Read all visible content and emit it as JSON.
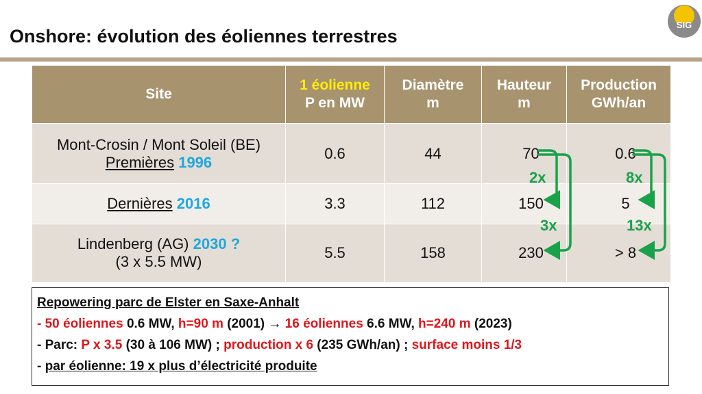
{
  "page": {
    "title": "Onshore: évolution des éoliennes terrestres"
  },
  "logo": {
    "text": "SIG"
  },
  "table": {
    "headers": {
      "site": "Site",
      "power_line1": "1 éolienne",
      "power_line2": "P en MW",
      "diam_line1": "Diamètre",
      "diam_line2": "m",
      "height_line1": "Hauteur",
      "height_line2": "m",
      "prod_line1": "Production",
      "prod_line2": "GWh/an"
    },
    "rows": [
      {
        "site_line1": "Mont-Crosin / Mont Soleil (BE)",
        "site_label": "Premières",
        "site_year": "1996",
        "power": "0.6",
        "diameter": "44",
        "height": "70",
        "production": "0.6"
      },
      {
        "site_label": "Dernières",
        "site_year": "2016",
        "power": "3.3",
        "diameter": "112",
        "height": "150",
        "production": "5"
      },
      {
        "site_line1": "Lindenberg (AG)",
        "site_year": "2030 ?",
        "site_line2": "(3 x 5.5 MW)",
        "power": "5.5",
        "diameter": "158",
        "height": "230",
        "production": "> 8"
      }
    ]
  },
  "annotations": {
    "height_2016": "2x",
    "height_2030": "3x",
    "prod_2016": "8x",
    "prod_2030": "13x"
  },
  "colors": {
    "header_bg": "#a8936f",
    "highlight_yellow": "#ffee00",
    "year_blue": "#1ea8dc",
    "arrow_green": "#1aa24a",
    "red": "#e0161b"
  },
  "box": {
    "heading": "Repowering parc de Elster en Saxe-Anhalt",
    "l1": {
      "dash": "- ",
      "a": "50 éoliennes",
      "b": " 0.6 MW, ",
      "c": "h=90 m",
      "d": " (2001) ",
      "arrow": "→",
      "e": " ",
      "f": "16 éoliennes",
      "g": " 6.6 MW, ",
      "h": "h=240 m",
      "i": " (2023)"
    },
    "l2": {
      "a": "- Parc: ",
      "b": "P x 3.5",
      "c": " (30 à 106 MW) ; ",
      "d": "production x 6",
      "e": " (235 GWh/an) ; ",
      "f": "surface moins 1/3"
    },
    "l3": {
      "dash": "- ",
      "text": "par éolienne: 19 x plus d’électricité produite"
    }
  }
}
